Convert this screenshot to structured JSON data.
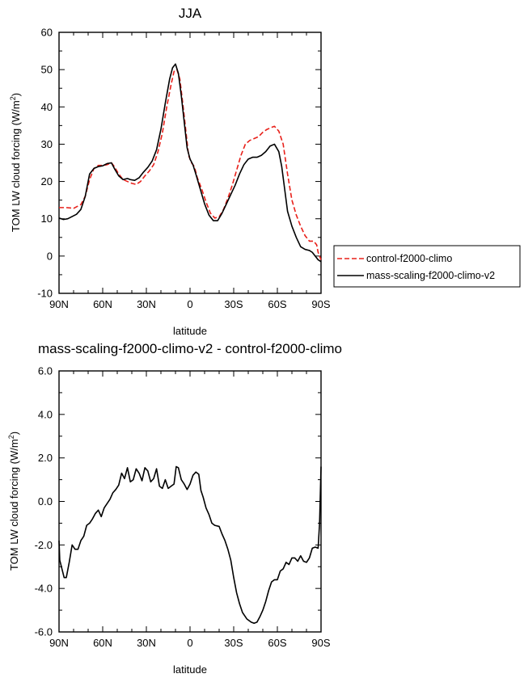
{
  "chart_data": [
    {
      "type": "line",
      "title": "JJA",
      "xlabel": "latitude",
      "ylabel": "TOM LW cloud forcing (W/m",
      "ylabel_sup": "2",
      "ylabel_close": ")",
      "xlim": [
        90,
        -90
      ],
      "ylim": [
        -10,
        60
      ],
      "xticks": [
        90,
        60,
        30,
        0,
        -30,
        -60,
        -90
      ],
      "xtick_labels": [
        "90N",
        "60N",
        "30N",
        "0",
        "30S",
        "60S",
        "90S"
      ],
      "yticks": [
        -10,
        0,
        10,
        20,
        30,
        40,
        50,
        60
      ],
      "ytick_labels": [
        "-10",
        "0",
        "10",
        "20",
        "30",
        "40",
        "50",
        "60"
      ],
      "legend_position": "right",
      "series": [
        {
          "name": "control-f2000-climo",
          "color": "#e8201a",
          "dash": "dashed",
          "points": [
            [
              90,
              13
            ],
            [
              85,
              13
            ],
            [
              80,
              12.8
            ],
            [
              75,
              13.8
            ],
            [
              72,
              16
            ],
            [
              69,
              20.5
            ],
            [
              66,
              23.5
            ],
            [
              63,
              24.3
            ],
            [
              60,
              24.3
            ],
            [
              57,
              24.5
            ],
            [
              54,
              25
            ],
            [
              52,
              24
            ],
            [
              49,
              22
            ],
            [
              46,
              20.5
            ],
            [
              43,
              20
            ],
            [
              40,
              19.5
            ],
            [
              37,
              19.2
            ],
            [
              34,
              20
            ],
            [
              31,
              21.5
            ],
            [
              28,
              22.8
            ],
            [
              25,
              24.5
            ],
            [
              22,
              28
            ],
            [
              19,
              33
            ],
            [
              16,
              40
            ],
            [
              13,
              46
            ],
            [
              11,
              49.5
            ],
            [
              9,
              50
            ],
            [
              7,
              47.5
            ],
            [
              5,
              41
            ],
            [
              3,
              34
            ],
            [
              1,
              27
            ],
            [
              -1,
              25
            ],
            [
              -3,
              24
            ],
            [
              -5,
              21
            ],
            [
              -8,
              18
            ],
            [
              -11,
              14.5
            ],
            [
              -14,
              11.5
            ],
            [
              -17,
              10.2
            ],
            [
              -20,
              10.5
            ],
            [
              -23,
              12.5
            ],
            [
              -26,
              15.5
            ],
            [
              -29,
              19
            ],
            [
              -32,
              23
            ],
            [
              -35,
              27
            ],
            [
              -38,
              30
            ],
            [
              -41,
              31
            ],
            [
              -44,
              31.5
            ],
            [
              -47,
              32
            ],
            [
              -50,
              33.2
            ],
            [
              -53,
              34
            ],
            [
              -56,
              34.5
            ],
            [
              -58,
              34.8
            ],
            [
              -61,
              33.5
            ],
            [
              -64,
              30
            ],
            [
              -67,
              22
            ],
            [
              -70,
              15
            ],
            [
              -73,
              11
            ],
            [
              -76,
              8
            ],
            [
              -79,
              5.5
            ],
            [
              -82,
              4
            ],
            [
              -85,
              4
            ],
            [
              -87,
              3
            ],
            [
              -88,
              1
            ],
            [
              -90,
              -1
            ]
          ]
        },
        {
          "name": "mass-scaling-f2000-climo-v2",
          "color": "#000000",
          "dash": "solid",
          "points": [
            [
              90,
              10.2
            ],
            [
              87,
              9.8
            ],
            [
              84,
              10
            ],
            [
              81,
              10.6
            ],
            [
              78,
              11.2
            ],
            [
              75,
              12.5
            ],
            [
              72,
              16
            ],
            [
              69,
              22
            ],
            [
              66,
              23.5
            ],
            [
              63,
              24
            ],
            [
              60,
              24.2
            ],
            [
              57,
              24.8
            ],
            [
              54,
              25
            ],
            [
              52,
              23.5
            ],
            [
              49,
              21.5
            ],
            [
              46,
              20.5
            ],
            [
              43,
              20.8
            ],
            [
              41,
              20.5
            ],
            [
              38,
              20.3
            ],
            [
              35,
              21
            ],
            [
              32,
              22.5
            ],
            [
              29,
              23.8
            ],
            [
              26,
              25.5
            ],
            [
              23,
              28.5
            ],
            [
              20,
              34
            ],
            [
              17,
              41
            ],
            [
              14,
              47.5
            ],
            [
              12,
              50.5
            ],
            [
              10,
              51.5
            ],
            [
              8,
              49
            ],
            [
              6,
              43
            ],
            [
              4,
              36
            ],
            [
              2,
              29
            ],
            [
              0,
              26
            ],
            [
              -2,
              24.5
            ],
            [
              -4,
              22
            ],
            [
              -7,
              18
            ],
            [
              -10,
              14
            ],
            [
              -13,
              11
            ],
            [
              -16,
              9.5
            ],
            [
              -19,
              9.5
            ],
            [
              -22,
              11.5
            ],
            [
              -25,
              14
            ],
            [
              -28,
              16.5
            ],
            [
              -31,
              19
            ],
            [
              -34,
              22
            ],
            [
              -37,
              24.5
            ],
            [
              -40,
              26
            ],
            [
              -43,
              26.5
            ],
            [
              -46,
              26.5
            ],
            [
              -49,
              27
            ],
            [
              -52,
              28
            ],
            [
              -55,
              29.5
            ],
            [
              -58,
              30
            ],
            [
              -61,
              28
            ],
            [
              -63,
              24
            ],
            [
              -65,
              18
            ],
            [
              -67,
              12
            ],
            [
              -70,
              8
            ],
            [
              -73,
              5
            ],
            [
              -76,
              2.5
            ],
            [
              -79,
              1.8
            ],
            [
              -82,
              1.5
            ],
            [
              -84,
              1
            ],
            [
              -86,
              0
            ],
            [
              -88,
              -1
            ],
            [
              -90,
              -1.5
            ]
          ]
        }
      ]
    },
    {
      "type": "line",
      "title": "mass-scaling-f2000-climo-v2 - control-f2000-climo",
      "xlabel": "latitude",
      "ylabel": "TOM LW cloud forcing (W/m",
      "ylabel_sup": "2",
      "ylabel_close": ")",
      "xlim": [
        90,
        -90
      ],
      "ylim": [
        -6,
        6
      ],
      "xticks": [
        90,
        60,
        30,
        0,
        -30,
        -60,
        -90
      ],
      "xtick_labels": [
        "90N",
        "60N",
        "30N",
        "0",
        "30S",
        "60S",
        "90S"
      ],
      "yticks": [
        -6,
        -4,
        -2,
        0,
        2,
        4,
        6
      ],
      "ytick_labels": [
        "-6.0",
        "-4.0",
        "-2.0",
        "0.0",
        "2.0",
        "4.0",
        "6.0"
      ],
      "series": [
        {
          "color": "#000000",
          "dash": "solid",
          "points": [
            [
              90,
              -1.8
            ],
            [
              89.5,
              -2.7
            ],
            [
              88,
              -3.1
            ],
            [
              86.5,
              -3.5
            ],
            [
              85,
              -3.5
            ],
            [
              83,
              -2.8
            ],
            [
              81,
              -2.0
            ],
            [
              79,
              -2.2
            ],
            [
              77,
              -2.2
            ],
            [
              75,
              -1.8
            ],
            [
              73,
              -1.6
            ],
            [
              71,
              -1.1
            ],
            [
              69,
              -1.0
            ],
            [
              67,
              -0.8
            ],
            [
              65,
              -0.55
            ],
            [
              63,
              -0.4
            ],
            [
              61,
              -0.7
            ],
            [
              59,
              -0.3
            ],
            [
              57,
              -0.1
            ],
            [
              55,
              0.1
            ],
            [
              53,
              0.4
            ],
            [
              51,
              0.55
            ],
            [
              49,
              0.75
            ],
            [
              47,
              1.3
            ],
            [
              45,
              1.05
            ],
            [
              43,
              1.55
            ],
            [
              41,
              0.9
            ],
            [
              39,
              1.0
            ],
            [
              37,
              1.5
            ],
            [
              35,
              1.3
            ],
            [
              33,
              0.95
            ],
            [
              31,
              1.55
            ],
            [
              29,
              1.4
            ],
            [
              27,
              0.9
            ],
            [
              25,
              1.05
            ],
            [
              23,
              1.5
            ],
            [
              21,
              0.7
            ],
            [
              19,
              0.6
            ],
            [
              17,
              1.0
            ],
            [
              15,
              0.6
            ],
            [
              13,
              0.7
            ],
            [
              11,
              0.8
            ],
            [
              9.5,
              1.6
            ],
            [
              8,
              1.55
            ],
            [
              6,
              1.0
            ],
            [
              4,
              0.8
            ],
            [
              2,
              0.55
            ],
            [
              0,
              0.8
            ],
            [
              -2,
              1.2
            ],
            [
              -4,
              1.35
            ],
            [
              -6,
              1.25
            ],
            [
              -7.5,
              0.5
            ],
            [
              -9,
              0.2
            ],
            [
              -11,
              -0.3
            ],
            [
              -13,
              -0.6
            ],
            [
              -15,
              -1.0
            ],
            [
              -17,
              -1.1
            ],
            [
              -20,
              -1.15
            ],
            [
              -22,
              -1.5
            ],
            [
              -24,
              -1.8
            ],
            [
              -26,
              -2.2
            ],
            [
              -28,
              -2.7
            ],
            [
              -30,
              -3.5
            ],
            [
              -32,
              -4.2
            ],
            [
              -34,
              -4.7
            ],
            [
              -36,
              -5.1
            ],
            [
              -39,
              -5.4
            ],
            [
              -42,
              -5.55
            ],
            [
              -44,
              -5.6
            ],
            [
              -46,
              -5.55
            ],
            [
              -48,
              -5.3
            ],
            [
              -50,
              -5.0
            ],
            [
              -52,
              -4.6
            ],
            [
              -54,
              -4.1
            ],
            [
              -56,
              -3.7
            ],
            [
              -58,
              -3.6
            ],
            [
              -60,
              -3.6
            ],
            [
              -62,
              -3.2
            ],
            [
              -64,
              -3.1
            ],
            [
              -66,
              -2.8
            ],
            [
              -68,
              -2.9
            ],
            [
              -70,
              -2.6
            ],
            [
              -72,
              -2.6
            ],
            [
              -74,
              -2.75
            ],
            [
              -76,
              -2.5
            ],
            [
              -78,
              -2.75
            ],
            [
              -80,
              -2.8
            ],
            [
              -82,
              -2.6
            ],
            [
              -84,
              -2.15
            ],
            [
              -86,
              -2.1
            ],
            [
              -88,
              -2.15
            ],
            [
              -89,
              -1.0
            ],
            [
              -90,
              1.6
            ]
          ]
        }
      ]
    }
  ]
}
